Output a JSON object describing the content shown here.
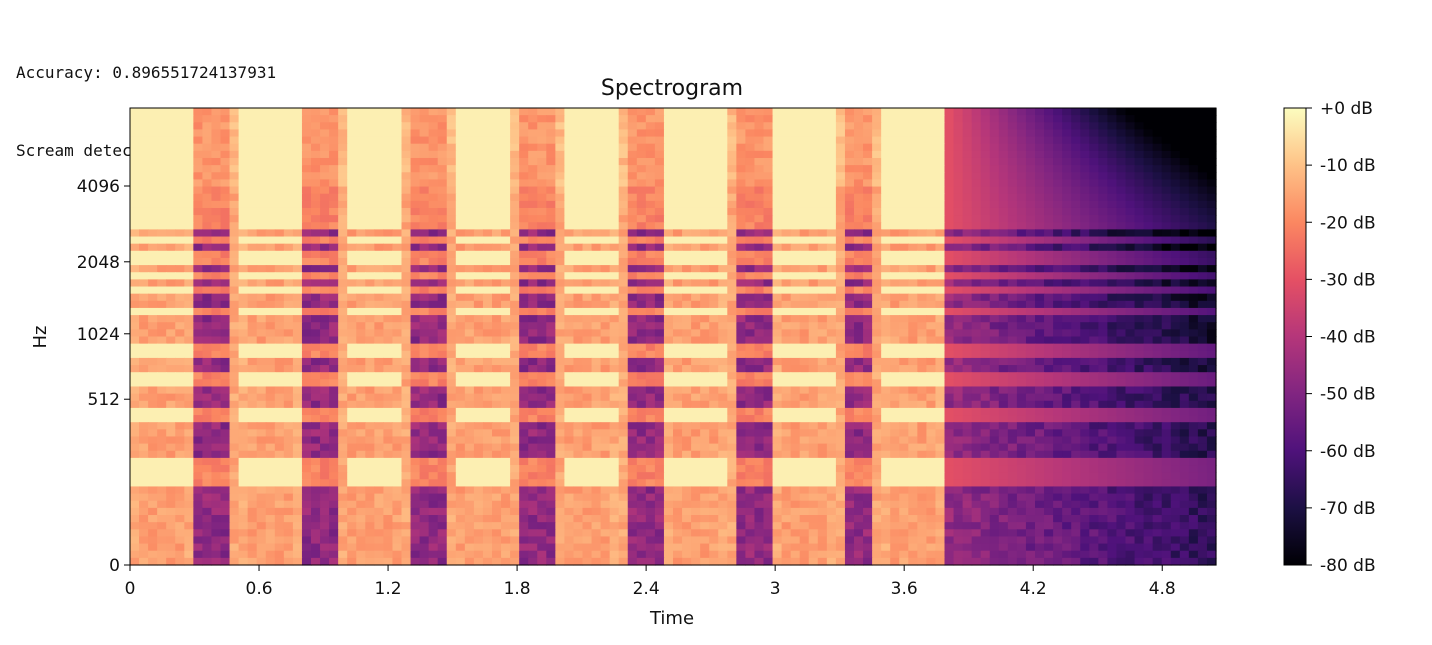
{
  "console": {
    "lines": [
      "Accuracy: 0.896551724137931",
      "Scream detected"
    ]
  },
  "chart_data": {
    "type": "heatmap",
    "title": "Spectrogram",
    "xlabel": "Time",
    "ylabel": "Hz",
    "xlim": [
      0,
      5.05
    ],
    "xticks": [
      0,
      0.6,
      1.2,
      1.8,
      2.4,
      3,
      3.6,
      4.2,
      4.8
    ],
    "xtick_labels": [
      "0",
      "0.6",
      "1.2",
      "1.8",
      "2.4",
      "3",
      "3.6",
      "4.2",
      "4.8"
    ],
    "yscale": "log2",
    "yticks": [
      0,
      512,
      1024,
      2048,
      4096
    ],
    "ytick_labels": [
      "0",
      "512",
      "1024",
      "2048",
      "4096"
    ],
    "colormap": "magma",
    "colorbar": {
      "ticks_db": [
        0,
        -10,
        -20,
        -30,
        -40,
        -50,
        -60,
        -70,
        -80
      ],
      "labels": [
        "+0 dB",
        "-10 dB",
        "-20 dB",
        "-30 dB",
        "-40 dB",
        "-50 dB",
        "-60 dB",
        "-70 dB",
        "-80 dB"
      ],
      "range_db": [
        -80,
        0
      ]
    },
    "tone_segments": [
      {
        "start": 0.0,
        "end": 0.28
      },
      {
        "start": 0.5,
        "end": 0.78
      },
      {
        "start": 1.0,
        "end": 1.28
      },
      {
        "start": 1.5,
        "end": 1.78
      },
      {
        "start": 2.0,
        "end": 2.28
      },
      {
        "start": 2.5,
        "end": 2.78
      },
      {
        "start": 3.0,
        "end": 3.28
      },
      {
        "start": 3.5,
        "end": 3.78
      }
    ],
    "harmonic_bands_hz": [
      200,
      420,
      650,
      870,
      1250,
      1550,
      1800,
      2100,
      2500,
      2900,
      3300,
      3700,
      4000,
      4400,
      4800,
      5200,
      5600,
      6000,
      6500,
      7000,
      7500,
      8000
    ],
    "decay_start_time": 3.8,
    "colors": {
      "magma_stops": [
        "#000004",
        "#1c1044",
        "#4f127b",
        "#812581",
        "#b5367a",
        "#e55064",
        "#fb8761",
        "#fec287",
        "#fcfdbf"
      ]
    }
  }
}
